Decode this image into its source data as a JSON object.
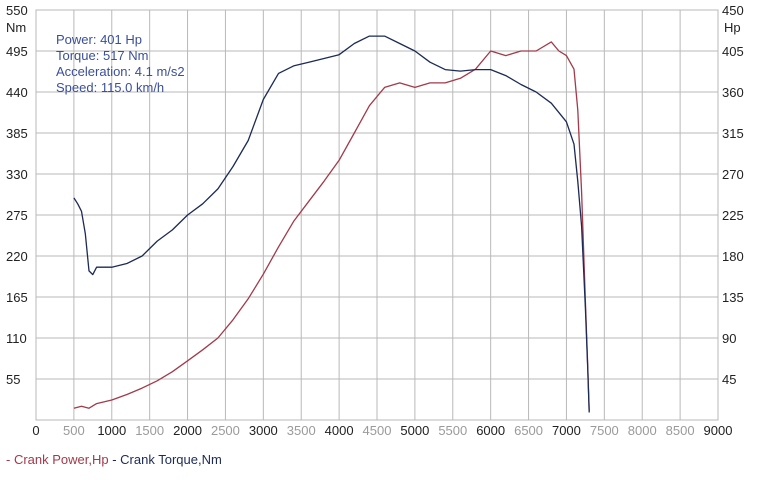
{
  "info": {
    "power": "Power: 401 Hp",
    "torque": "Torque: 517 Nm",
    "acceleration": "Acceleration: 4.1 m/s2",
    "speed": "Speed: 115.0 km/h"
  },
  "legend": {
    "power_label": "- Crank Power,Hp",
    "torque_label": "- Crank Torque,Nm"
  },
  "colors": {
    "power": "#a23a4a",
    "torque": "#1c2a55",
    "grid": "#b9b9b9",
    "tick_text": "#222222",
    "faded_tick": "#9a9a9a"
  },
  "chart_data": {
    "type": "line",
    "grid": true,
    "x_axis": {
      "range": [
        0,
        9000
      ],
      "ticks": [
        "0",
        "500",
        "1000",
        "1500",
        "2000",
        "2500",
        "3000",
        "3500",
        "4000",
        "4500",
        "5000",
        "5500",
        "6000",
        "6500",
        "7000",
        "7500",
        "8000",
        "8500",
        "9000"
      ],
      "faded_ticks": [
        "500",
        "1500",
        "2500",
        "3500",
        "4500",
        "5500",
        "6500",
        "7500",
        "8000",
        "8500"
      ]
    },
    "y_left": {
      "unit": "Nm",
      "range": [
        0,
        550
      ],
      "ticks": [
        "55",
        "110",
        "165",
        "220",
        "275",
        "330",
        "385",
        "440",
        "495",
        "550"
      ]
    },
    "y_right": {
      "unit": "Hp",
      "range": [
        0,
        450
      ],
      "ticks": [
        "45",
        "90",
        "135",
        "180",
        "225",
        "270",
        "315",
        "360",
        "405",
        "450"
      ]
    },
    "series": [
      {
        "name": "Crank Power,Hp",
        "axis": "right",
        "x": [
          500,
          600,
          700,
          800,
          1000,
          1200,
          1400,
          1600,
          1800,
          2000,
          2200,
          2400,
          2600,
          2800,
          3000,
          3200,
          3400,
          3600,
          3800,
          4000,
          4200,
          4400,
          4600,
          4800,
          5000,
          5200,
          5400,
          5600,
          5800,
          6000,
          6200,
          6400,
          6600,
          6800,
          6900,
          7000,
          7100,
          7150,
          7200,
          7250,
          7280,
          7300
        ],
        "y": [
          13,
          15,
          13,
          18,
          22,
          28,
          35,
          43,
          53,
          65,
          77,
          90,
          110,
          133,
          160,
          190,
          218,
          240,
          262,
          285,
          315,
          345,
          365,
          370,
          365,
          370,
          370,
          375,
          385,
          405,
          400,
          405,
          405,
          415,
          405,
          400,
          385,
          340,
          250,
          130,
          60,
          10
        ]
      },
      {
        "name": "Crank Torque,Nm",
        "axis": "left",
        "x": [
          500,
          550,
          600,
          650,
          700,
          750,
          800,
          1000,
          1200,
          1400,
          1600,
          1800,
          2000,
          2200,
          2400,
          2600,
          2800,
          3000,
          3200,
          3400,
          3600,
          3800,
          4000,
          4200,
          4400,
          4600,
          4800,
          5000,
          5200,
          5400,
          5600,
          5800,
          6000,
          6200,
          6400,
          6600,
          6800,
          7000,
          7100,
          7150,
          7200,
          7250,
          7280,
          7300
        ],
        "y": [
          298,
          290,
          280,
          250,
          200,
          195,
          205,
          205,
          210,
          220,
          240,
          255,
          275,
          290,
          310,
          340,
          375,
          430,
          465,
          475,
          480,
          485,
          490,
          505,
          515,
          515,
          505,
          495,
          480,
          470,
          468,
          470,
          470,
          462,
          450,
          440,
          425,
          400,
          370,
          320,
          260,
          150,
          70,
          10
        ]
      }
    ]
  }
}
